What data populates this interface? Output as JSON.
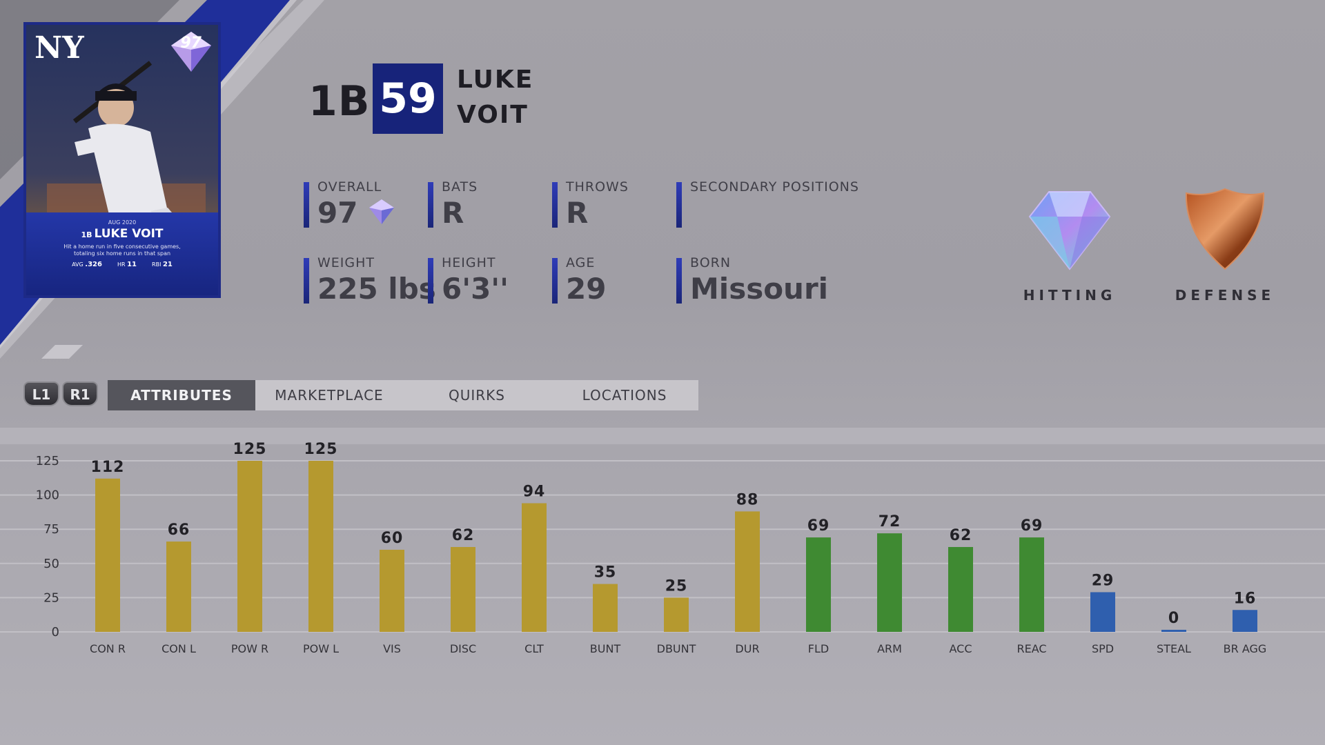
{
  "card": {
    "team_logo": "NY",
    "gem_rating": "97",
    "medal": "M",
    "date": "AUG 2020",
    "position": "1B",
    "name": "LUKE VOIT",
    "description_line1": "Hit a home run in five consecutive games,",
    "description_line2": "totaling six home runs in that span",
    "stats": [
      {
        "label": "AVG",
        "value": ".326"
      },
      {
        "label": "HR",
        "value": "11"
      },
      {
        "label": "RBI",
        "value": "21"
      }
    ]
  },
  "header": {
    "position": "1B",
    "number": "59",
    "first_name": "LUKE",
    "last_name": "VOIT"
  },
  "info": {
    "overall_label": "OVERALL",
    "overall_value": "97",
    "bats_label": "BATS",
    "bats_value": "R",
    "throws_label": "THROWS",
    "throws_value": "R",
    "secondary_label": "SECONDARY POSITIONS",
    "secondary_value": "",
    "weight_label": "WEIGHT",
    "weight_value": "225 lbs",
    "height_label": "HEIGHT",
    "height_value": "6'3''",
    "age_label": "AGE",
    "age_value": "29",
    "born_label": "BORN",
    "born_value": "Missouri"
  },
  "badges": {
    "hitting_label": "HITTING",
    "defense_label": "DEFENSE"
  },
  "nav": {
    "l1": "L1",
    "r1": "R1",
    "tabs": [
      "ATTRIBUTES",
      "MARKETPLACE",
      "QUIRKS",
      "LOCATIONS"
    ]
  },
  "colors": {
    "hitting": "#b5992f",
    "fielding": "#3f8a32",
    "running": "#2f5fae",
    "accent": "#17237a"
  },
  "chart_data": {
    "type": "bar",
    "categories": [
      "CON R",
      "CON L",
      "POW R",
      "POW L",
      "VIS",
      "DISC",
      "CLT",
      "BUNT",
      "DBUNT",
      "DUR",
      "FLD",
      "ARM",
      "ACC",
      "REAC",
      "SPD",
      "STEAL",
      "BR AGG"
    ],
    "values": [
      112,
      66,
      125,
      125,
      60,
      62,
      94,
      35,
      25,
      88,
      69,
      72,
      62,
      69,
      29,
      0,
      16
    ],
    "groups": [
      "hitting",
      "hitting",
      "hitting",
      "hitting",
      "hitting",
      "hitting",
      "hitting",
      "hitting",
      "hitting",
      "hitting",
      "fielding",
      "fielding",
      "fielding",
      "fielding",
      "running",
      "running",
      "running"
    ],
    "yticks": [
      125,
      100,
      75,
      50,
      25,
      0
    ],
    "ylim": [
      0,
      125
    ],
    "grid": true
  }
}
